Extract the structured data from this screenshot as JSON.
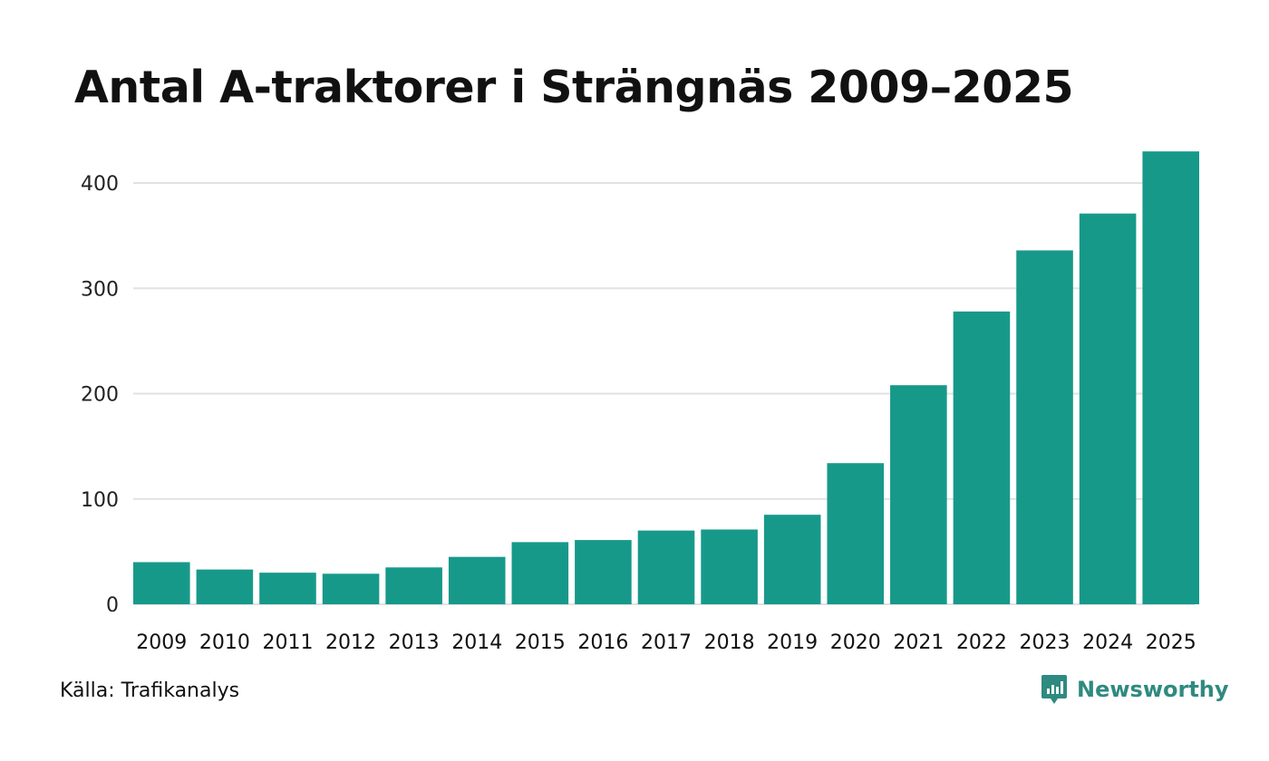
{
  "chart_data": {
    "type": "bar",
    "title": "Antal A-traktorer i Strängnäs 2009–2025",
    "categories": [
      "2009",
      "2010",
      "2011",
      "2012",
      "2013",
      "2014",
      "2015",
      "2016",
      "2017",
      "2018",
      "2019",
      "2020",
      "2021",
      "2022",
      "2023",
      "2024",
      "2025"
    ],
    "values": [
      40,
      33,
      30,
      29,
      35,
      45,
      59,
      61,
      70,
      71,
      85,
      134,
      208,
      278,
      336,
      371,
      430
    ],
    "ylim": [
      0,
      430
    ],
    "yticks": [
      "0",
      "100",
      "200",
      "300",
      "400"
    ],
    "xlabel": "",
    "ylabel": "",
    "grid": true,
    "bar_color": "#17998a"
  },
  "footer": {
    "source": "Källa: Trafikanalys",
    "brand": "Newsworthy",
    "brand_color": "#2f8a80"
  }
}
